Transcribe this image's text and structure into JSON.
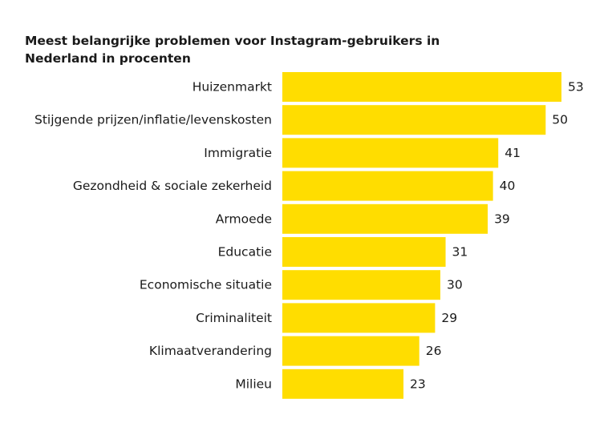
{
  "chart_data": {
    "type": "bar",
    "orientation": "horizontal",
    "title": "Meest belangrijke problemen voor Instagram-gebruikers in Nederland in procenten",
    "categories": [
      "Huizenmarkt",
      "Stijgende prijzen/inflatie/levenskosten",
      "Immigratie",
      "Gezondheid & sociale zekerheid",
      "Armoede",
      "Educatie",
      "Economische situatie",
      "Criminaliteit",
      "Klimaatverandering",
      "Milieu"
    ],
    "values": [
      53,
      50,
      41,
      40,
      39,
      31,
      30,
      29,
      26,
      23
    ],
    "xlim": [
      0,
      53
    ],
    "bar_color": "#FFDD00",
    "grid": false,
    "legend": "none"
  }
}
